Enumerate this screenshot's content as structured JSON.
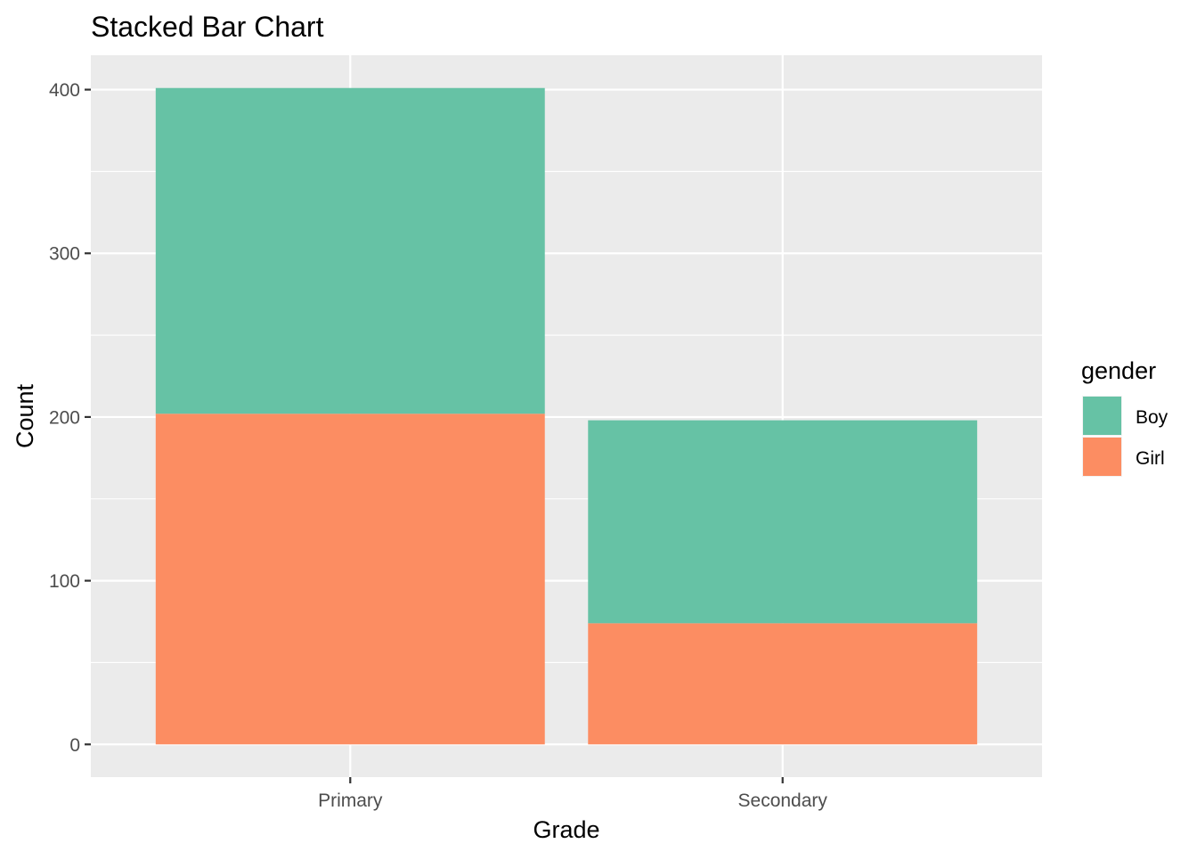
{
  "chart_data": {
    "type": "bar",
    "stacked": true,
    "title": "Stacked Bar Chart",
    "xlabel": "Grade",
    "ylabel": "Count",
    "categories": [
      "Primary",
      "Secondary"
    ],
    "series": [
      {
        "name": "Girl",
        "values": [
          202,
          74
        ],
        "color": "#FC8D62"
      },
      {
        "name": "Boy",
        "values": [
          199,
          124
        ],
        "color": "#66C2A5"
      }
    ],
    "ylim": [
      -20,
      421
    ],
    "yticks": [
      0,
      100,
      200,
      300,
      400
    ],
    "grid": true,
    "panel_background": "#EBEBEB",
    "grid_color": "#FFFFFF",
    "legend": {
      "title": "gender",
      "position": "right",
      "items": [
        {
          "label": "Boy",
          "color": "#66C2A5"
        },
        {
          "label": "Girl",
          "color": "#FC8D62"
        }
      ]
    }
  }
}
